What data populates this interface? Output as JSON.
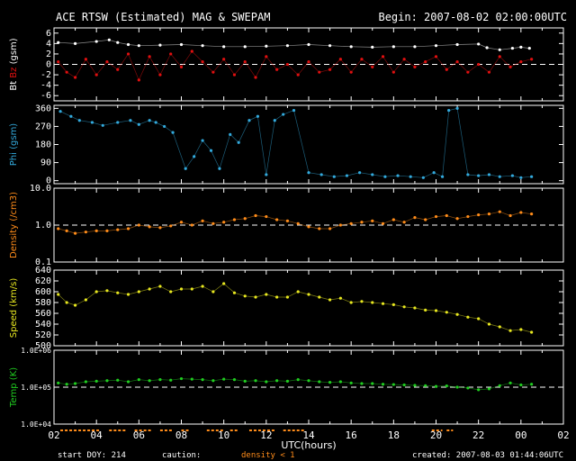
{
  "header": {
    "title": "ACE RTSW (Estimated) MAG & SWEPAM",
    "begin": "Begin: 2007-08-02 02:00:00UTC"
  },
  "footer": {
    "start_doy": "start DOY: 214",
    "caution_label": "caution:",
    "caution_note": "density < 1",
    "created": "created: 2007-08-03 01:44:06UTC"
  },
  "colors": {
    "background": "#000000",
    "axis": "#ffffff",
    "bt": "#ffffff",
    "bz": "#e01010",
    "phi": "#33aadd",
    "density": "#ff8c1a",
    "speed": "#e8e820",
    "temp": "#20cc20"
  },
  "chart_data": {
    "type": "scatter",
    "xlabel": "UTC(hours)",
    "x_ticks": [
      "02",
      "04",
      "06",
      "08",
      "10",
      "12",
      "14",
      "16",
      "18",
      "20",
      "22",
      "00",
      "02"
    ],
    "xlim_hours": [
      2,
      26
    ],
    "panels": [
      {
        "id": "mag",
        "ylabel_parts": [
          "Bt",
          "Bz",
          "(gsm)"
        ],
        "ylim": [
          -7,
          7
        ],
        "yticks": [
          6,
          4,
          2,
          0,
          -2,
          -4,
          -6
        ],
        "ytick_labels": [
          "6",
          "4",
          "2",
          "0",
          "-2",
          "-4",
          "-6"
        ],
        "ref_line": 0,
        "series": [
          {
            "name": "Bt",
            "color_key": "bt",
            "x": [
              2.2,
              3,
              4,
              4.6,
              5,
              5.5,
              6,
              7,
              8,
              9,
              10,
              11,
              12,
              13,
              14,
              15,
              16,
              17,
              18,
              19,
              20,
              21,
              22,
              22.4,
              23,
              23.6,
              24,
              24.4
            ],
            "y": [
              4.2,
              4.0,
              4.4,
              4.7,
              4.2,
              3.8,
              3.6,
              3.7,
              3.8,
              3.6,
              3.4,
              3.4,
              3.5,
              3.6,
              3.8,
              3.6,
              3.4,
              3.3,
              3.4,
              3.4,
              3.6,
              3.8,
              3.9,
              3.2,
              2.8,
              3.1,
              3.3,
              3.1
            ]
          },
          {
            "name": "Bz",
            "color_key": "bz",
            "x": [
              2.2,
              2.6,
              3,
              3.5,
              4,
              4.5,
              5,
              5.5,
              6,
              6.5,
              7,
              7.5,
              8,
              8.5,
              9,
              9.5,
              10,
              10.5,
              11,
              11.5,
              12,
              12.5,
              13,
              13.5,
              14,
              14.5,
              15,
              15.5,
              16,
              16.5,
              17,
              17.5,
              18,
              18.5,
              19,
              19.5,
              20,
              20.5,
              21,
              21.5,
              22,
              22.5,
              23,
              23.5,
              24,
              24.5
            ],
            "y": [
              0.5,
              -1.5,
              -2.5,
              1.0,
              -2.0,
              0.5,
              -1.0,
              2.0,
              -3.0,
              1.5,
              -2.0,
              2.0,
              -0.5,
              2.5,
              0.5,
              -1.5,
              1.0,
              -2.0,
              0.5,
              -2.5,
              1.5,
              -1.0,
              0.0,
              -2.0,
              0.5,
              -1.5,
              -1.0,
              1.0,
              -1.5,
              1.0,
              -0.5,
              1.5,
              -1.5,
              1.0,
              -0.5,
              0.5,
              1.5,
              -1.0,
              0.5,
              -1.5,
              0.0,
              -1.5,
              1.5,
              -0.5,
              0.5,
              1.0
            ]
          }
        ]
      },
      {
        "id": "phi",
        "ylabel": "Phi (gsm)",
        "ylim": [
          -15,
          375
        ],
        "yticks": [
          360,
          270,
          180,
          90,
          0
        ],
        "ytick_labels": [
          "360",
          "270",
          "180",
          "90",
          "0"
        ],
        "series": [
          {
            "name": "Phi",
            "color_key": "phi",
            "x": [
              2.3,
              2.8,
              3.2,
              3.8,
              4.3,
              5.0,
              5.6,
              6.0,
              6.5,
              6.8,
              7.2,
              7.6,
              8.2,
              8.6,
              9.0,
              9.4,
              9.8,
              10.3,
              10.7,
              11.2,
              11.6,
              12.0,
              12.4,
              12.8,
              13.3,
              14.0,
              14.6,
              15.2,
              15.8,
              16.4,
              17.0,
              17.6,
              18.2,
              18.8,
              19.4,
              19.9,
              20.3,
              20.6,
              21.0,
              21.5,
              22.0,
              22.5,
              23.0,
              23.6,
              24.0,
              24.5
            ],
            "y": [
              345,
              320,
              300,
              290,
              275,
              290,
              300,
              280,
              300,
              290,
              270,
              240,
              60,
              120,
              200,
              150,
              60,
              230,
              190,
              300,
              320,
              30,
              300,
              330,
              350,
              40,
              30,
              20,
              25,
              40,
              30,
              20,
              25,
              20,
              15,
              40,
              20,
              350,
              360,
              30,
              25,
              30,
              20,
              25,
              15,
              20
            ]
          }
        ]
      },
      {
        "id": "density",
        "ylabel": "Density (/cm3)",
        "log": true,
        "ylim": [
          0.1,
          10.0
        ],
        "yticks": [
          10.0,
          1.0,
          0.1
        ],
        "ytick_labels": [
          "10.0",
          "1.0",
          "0.1"
        ],
        "ref_line": 1.0,
        "series": [
          {
            "name": "Density",
            "color_key": "density",
            "x": [
              2.2,
              2.6,
              3,
              3.5,
              4,
              4.5,
              5,
              5.5,
              6,
              6.5,
              7,
              7.5,
              8,
              8.5,
              9,
              9.5,
              10,
              10.5,
              11,
              11.5,
              12,
              12.5,
              13,
              13.5,
              14,
              14.5,
              15,
              15.5,
              16,
              16.5,
              17,
              17.5,
              18,
              18.5,
              19,
              19.5,
              20,
              20.5,
              21,
              21.5,
              22,
              22.5,
              23,
              23.5,
              24,
              24.5
            ],
            "y": [
              0.8,
              0.7,
              0.6,
              0.65,
              0.7,
              0.7,
              0.75,
              0.8,
              1.0,
              0.9,
              0.85,
              0.95,
              1.2,
              1.0,
              1.3,
              1.1,
              1.2,
              1.4,
              1.5,
              1.8,
              1.7,
              1.4,
              1.3,
              1.1,
              0.9,
              0.8,
              0.8,
              1.0,
              1.1,
              1.2,
              1.3,
              1.1,
              1.4,
              1.2,
              1.6,
              1.4,
              1.7,
              1.8,
              1.5,
              1.7,
              1.9,
              2.0,
              2.3,
              1.8,
              2.2,
              2.0
            ]
          }
        ]
      },
      {
        "id": "speed",
        "ylabel": "Speed (km/s)",
        "ylim": [
          500,
          640
        ],
        "yticks": [
          640,
          620,
          600,
          580,
          560,
          540,
          520,
          500
        ],
        "ytick_labels": [
          "640",
          "620",
          "600",
          "580",
          "560",
          "540",
          "520",
          "500"
        ],
        "series": [
          {
            "name": "Speed",
            "color_key": "speed",
            "x": [
              2.2,
              2.6,
              3,
              3.5,
              4,
              4.5,
              5,
              5.5,
              6,
              6.5,
              7,
              7.5,
              8,
              8.5,
              9,
              9.5,
              10,
              10.5,
              11,
              11.5,
              12,
              12.5,
              13,
              13.5,
              14,
              14.5,
              15,
              15.5,
              16,
              16.5,
              17,
              17.5,
              18,
              18.5,
              19,
              19.5,
              20,
              20.5,
              21,
              21.5,
              22,
              22.5,
              23,
              23.5,
              24,
              24.5
            ],
            "y": [
              595,
              580,
              575,
              585,
              600,
              602,
              598,
              595,
              600,
              605,
              610,
              600,
              605,
              605,
              610,
              600,
              615,
              598,
              592,
              590,
              595,
              590,
              590,
              600,
              595,
              590,
              585,
              588,
              580,
              582,
              580,
              578,
              576,
              572,
              570,
              566,
              565,
              562,
              558,
              553,
              550,
              540,
              535,
              528,
              530,
              525
            ]
          }
        ]
      },
      {
        "id": "temp",
        "ylabel": "Temp (K)",
        "log": true,
        "ylim": [
          10000,
          1000000
        ],
        "yticks": [
          1000000,
          100000,
          10000
        ],
        "ytick_labels": [
          "1.0E+06",
          "1.0E+05",
          "1.0E+04"
        ],
        "ref_line": 100000,
        "series": [
          {
            "name": "Temp",
            "color_key": "temp",
            "x": [
              2.2,
              2.6,
              3,
              3.5,
              4,
              4.5,
              5,
              5.5,
              6,
              6.5,
              7,
              7.5,
              8,
              8.5,
              9,
              9.5,
              10,
              10.5,
              11,
              11.5,
              12,
              12.5,
              13,
              13.5,
              14,
              14.5,
              15,
              15.5,
              16,
              16.5,
              17,
              17.5,
              18,
              18.5,
              19,
              19.5,
              20,
              20.5,
              21,
              21.5,
              22,
              22.5,
              23,
              23.5,
              24,
              24.5
            ],
            "y": [
              130000,
              120000,
              125000,
              140000,
              145000,
              150000,
              155000,
              140000,
              160000,
              150000,
              160000,
              155000,
              170000,
              165000,
              160000,
              150000,
              165000,
              160000,
              145000,
              150000,
              140000,
              150000,
              145000,
              160000,
              150000,
              140000,
              135000,
              140000,
              130000,
              125000,
              125000,
              120000,
              118000,
              115000,
              112000,
              110000,
              105000,
              108000,
              100000,
              95000,
              85000,
              90000,
              110000,
              130000,
              115000,
              120000
            ]
          }
        ]
      }
    ],
    "caution_segments_hours": [
      [
        2.3,
        4.2
      ],
      [
        4.6,
        5.4
      ],
      [
        5.8,
        6.6
      ],
      [
        7.0,
        7.6
      ],
      [
        8.0,
        8.4
      ],
      [
        9.2,
        10.0
      ],
      [
        10.3,
        10.7
      ],
      [
        11.2,
        12.4
      ],
      [
        12.8,
        13.8
      ],
      [
        19.8,
        20.3
      ],
      [
        20.5,
        20.8
      ]
    ]
  }
}
